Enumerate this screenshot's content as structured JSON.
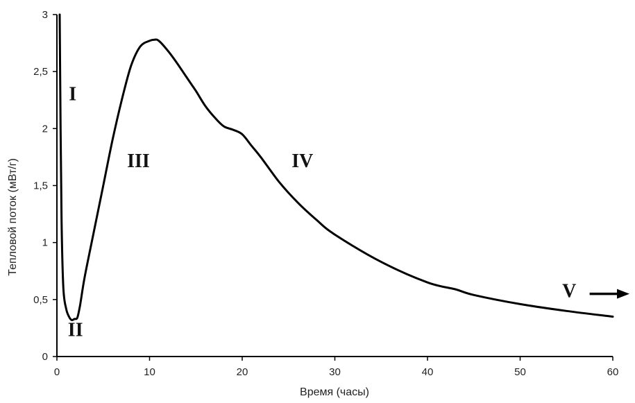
{
  "chart_data": {
    "type": "line",
    "xlabel": "Время (часы)",
    "ylabel": "Тепловой поток (мВт/г)",
    "xlim": [
      0,
      60
    ],
    "ylim": [
      0,
      3
    ],
    "xticks": [
      0,
      10,
      20,
      30,
      40,
      50,
      60
    ],
    "xtick_labels": [
      "0",
      "10",
      "20",
      "30",
      "40",
      "50",
      "60"
    ],
    "yticks": [
      0,
      0.5,
      1,
      1.5,
      2,
      2.5,
      3
    ],
    "ytick_labels": [
      "0",
      "0,5",
      "1",
      "1,5",
      "2",
      "2,5",
      "3"
    ],
    "grid": false,
    "series": [
      {
        "color": "#000000",
        "x": [
          0.3,
          0.4,
          0.5,
          0.7,
          1.0,
          1.3,
          1.6,
          1.9,
          2.2,
          2.5,
          3.0,
          4.0,
          5.0,
          6.0,
          7.0,
          8.0,
          9.0,
          10.0,
          10.5,
          11.0,
          12.0,
          13.0,
          14.0,
          15.0,
          16.0,
          17.0,
          18.0,
          19.0,
          20.0,
          21.0,
          22.0,
          24.0,
          26.0,
          28.0,
          30.0,
          35.0,
          40.0,
          43.0,
          45.0,
          50.0,
          55.0,
          60.0
        ],
        "y": [
          3.0,
          2.0,
          1.2,
          0.6,
          0.42,
          0.35,
          0.32,
          0.33,
          0.34,
          0.45,
          0.7,
          1.1,
          1.5,
          1.9,
          2.25,
          2.55,
          2.72,
          2.77,
          2.78,
          2.77,
          2.68,
          2.57,
          2.45,
          2.33,
          2.2,
          2.1,
          2.02,
          1.99,
          1.95,
          1.85,
          1.75,
          1.53,
          1.35,
          1.2,
          1.07,
          0.83,
          0.65,
          0.59,
          0.54,
          0.46,
          0.4,
          0.35
        ]
      }
    ],
    "annotations": [
      {
        "text": "I",
        "x": 1.7,
        "y": 2.25
      },
      {
        "text": "II",
        "x": 2.0,
        "y": 0.18
      },
      {
        "text": "III",
        "x": 8.8,
        "y": 1.66
      },
      {
        "text": "IV",
        "x": 26.5,
        "y": 1.66
      },
      {
        "text": "V",
        "x": 55.3,
        "y": 0.52
      }
    ],
    "arrow": {
      "x1": 57.5,
      "x2": 61.8,
      "y": 0.55
    }
  }
}
